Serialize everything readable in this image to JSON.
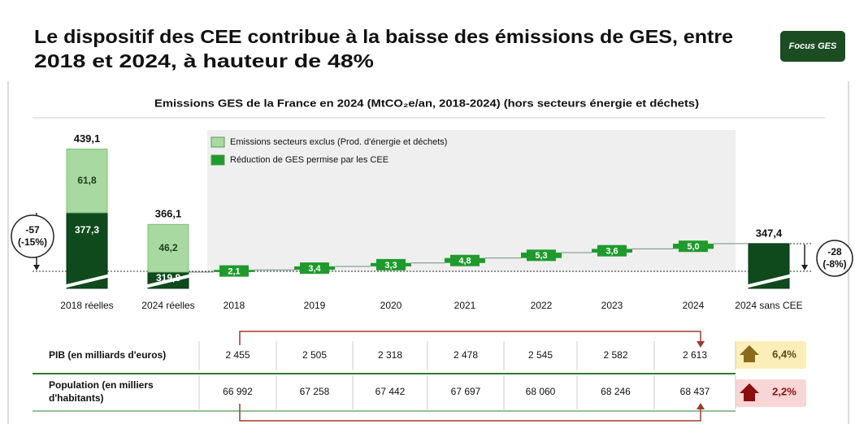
{
  "header": {
    "title_lines": [
      "Le dispositif des CEE contribue à la baisse des émissions de GES, entre",
      "2018 et 2024, à hauteur de 48%"
    ],
    "badge": "Focus GES"
  },
  "chart_data": {
    "type": "waterfall",
    "title": "Emissions GES de la France en 2024 (MtCO₂e/an, 2018-2024) (hors secteurs énergie et déchets)",
    "categories": [
      "2018 réelles",
      "2024 réelles",
      "2018",
      "2019",
      "2020",
      "2021",
      "2022",
      "2023",
      "2024",
      "2024 sans CEE"
    ],
    "base": {
      "color": "#0f4a1d",
      "values": [
        377.3,
        319.8,
        null,
        null,
        null,
        null,
        null,
        null,
        null,
        347.4
      ],
      "value_labels": [
        "377,3",
        "319,8",
        null,
        null,
        null,
        null,
        null,
        null,
        null,
        null
      ]
    },
    "series": [
      {
        "name": "Emissions secteurs exclus (Prod. d'énergie et déchets)",
        "color": "#a8d9a0",
        "values": [
          61.8,
          46.2,
          null,
          null,
          null,
          null,
          null,
          null,
          null,
          null
        ],
        "value_labels": [
          "61,8",
          "46,2",
          null,
          null,
          null,
          null,
          null,
          null,
          null,
          null
        ]
      },
      {
        "name": "Réduction de GES permise par les CEE",
        "color": "#1f9a2c",
        "values": [
          null,
          null,
          2.1,
          3.4,
          3.3,
          4.8,
          5.3,
          3.6,
          5.0,
          null
        ],
        "value_labels": [
          null,
          null,
          "2,1",
          "3,4",
          "3,3",
          "4,8",
          "5,3",
          "3,6",
          "5,0",
          null
        ]
      }
    ],
    "totals": {
      "values": [
        439.1,
        366.1,
        null,
        null,
        null,
        null,
        null,
        null,
        null,
        347.4
      ],
      "value_labels": [
        "439,1",
        "366,1",
        null,
        null,
        null,
        null,
        null,
        null,
        null,
        "347,4"
      ]
    },
    "ylim": [
      304,
      445
    ],
    "annotations": [
      {
        "text": "-57",
        "detail": "(-15%)"
      },
      {
        "text": "-28",
        "detail": "(-8%)"
      }
    ]
  },
  "table": {
    "rows": [
      {
        "label": [
          "PIB (en milliards d'euros)"
        ],
        "cells": [
          "2 455",
          "2 505",
          "2 318",
          "2 478",
          "2 545",
          "2 582",
          "2 613"
        ],
        "change": "6,4%"
      },
      {
        "label": [
          "Population (en milliers",
          "d'habitants)"
        ],
        "cells": [
          "66 992",
          "67 258",
          "67 442",
          "67 697",
          "68 060",
          "68 246",
          "68 437"
        ],
        "change": "2,2%"
      }
    ]
  }
}
